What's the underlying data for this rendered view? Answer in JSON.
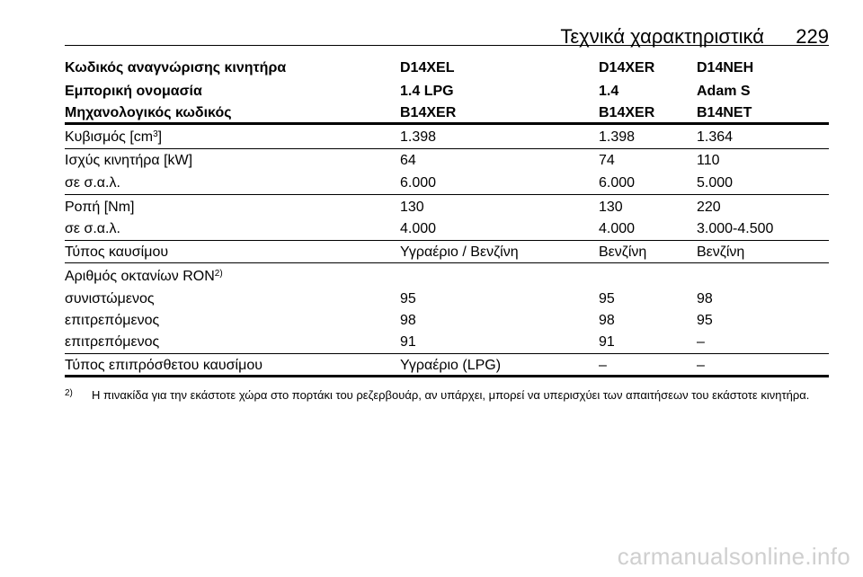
{
  "header": {
    "title": "Τεχνικά χαρακτηριστικά",
    "page_number": "229"
  },
  "engine_table": {
    "head_rows": [
      {
        "label": "Κωδικός αναγνώρισης κινητήρα",
        "v1": "D14XEL",
        "v2": "D14XER",
        "v3": "D14NEH"
      },
      {
        "label": "Εμπορική ονομασία",
        "v1": "1.4 LPG",
        "v2": "1.4",
        "v3": "Adam S"
      },
      {
        "label": "Μηχανολογικός κωδικός",
        "v1": "B14XER",
        "v2": "B14XER",
        "v3": "B14NET"
      }
    ],
    "displacement": {
      "label": "Κυβισμός [cm",
      "sup": "3",
      "label_end": "]",
      "v1": "1.398",
      "v2": "1.398",
      "v3": "1.364"
    },
    "power": {
      "label": "Ισχύς κινητήρα [kW]",
      "v1": "64",
      "v2": "74",
      "v3": "110"
    },
    "power_rpm": {
      "label": "σε σ.α.λ.",
      "v1": "6.000",
      "v2": "6.000",
      "v3": "5.000"
    },
    "torque": {
      "label": "Ροπή [Nm]",
      "v1": "130",
      "v2": "130",
      "v3": "220"
    },
    "torque_rpm": {
      "label": "σε σ.α.λ.",
      "v1": "4.000",
      "v2": "4.000",
      "v3": "3.000-4.500"
    },
    "fuel": {
      "label": "Τύπος καυσίμου",
      "v1": "Υγραέριο / Βενζίνη",
      "v2": "Βενζίνη",
      "v3": "Βενζίνη"
    },
    "octane": {
      "label": "Αριθμός οκτανίων RON",
      "sup": "2)"
    },
    "recommended": {
      "label": "συνιστώμενος",
      "v1": "95",
      "v2": "95",
      "v3": "98"
    },
    "permitted1": {
      "label": "επιτρεπόμενος",
      "v1": "98",
      "v2": "98",
      "v3": "95"
    },
    "permitted2": {
      "label": "επιτρεπόμενος",
      "v1": "91",
      "v2": "91",
      "v3": "–"
    },
    "extra_fuel": {
      "label": "Τύπος επιπρόσθετου καυσίμου",
      "v1": "Υγραέριο (LPG)",
      "v2": "–",
      "v3": "–"
    }
  },
  "footnote": {
    "marker": "2)",
    "text": "Η πινακίδα για την εκάστοτε χώρα στο πορτάκι του ρεζερβουάρ, αν υπάρχει, μπορεί να υπερισχύει των απαιτήσεων του εκάστοτε κινητήρα."
  },
  "watermark": "carmanualsonline.info"
}
